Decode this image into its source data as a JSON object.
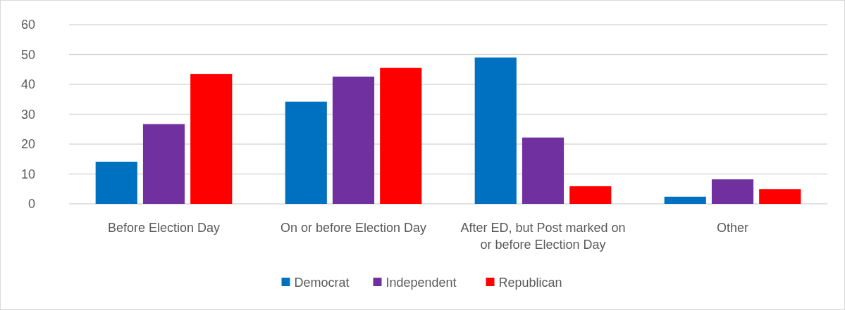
{
  "chart_data": {
    "type": "bar",
    "categories": [
      "Before Election Day",
      "On or before Election Day",
      "After ED, but Post marked on or before Election Day",
      "Other"
    ],
    "series": [
      {
        "name": "Democrat",
        "color": "#0070c0",
        "values": [
          14.1,
          34.2,
          49.0,
          2.4
        ]
      },
      {
        "name": "Independent",
        "color": "#7030a0",
        "values": [
          26.7,
          42.6,
          22.2,
          8.2
        ]
      },
      {
        "name": "Republican",
        "color": "#ff0000",
        "values": [
          43.5,
          45.5,
          5.9,
          4.9
        ]
      }
    ],
    "ylim": [
      0,
      60
    ],
    "yticks": [
      0,
      10,
      20,
      30,
      40,
      50,
      60
    ],
    "grid": "y",
    "legend": "bottom"
  }
}
